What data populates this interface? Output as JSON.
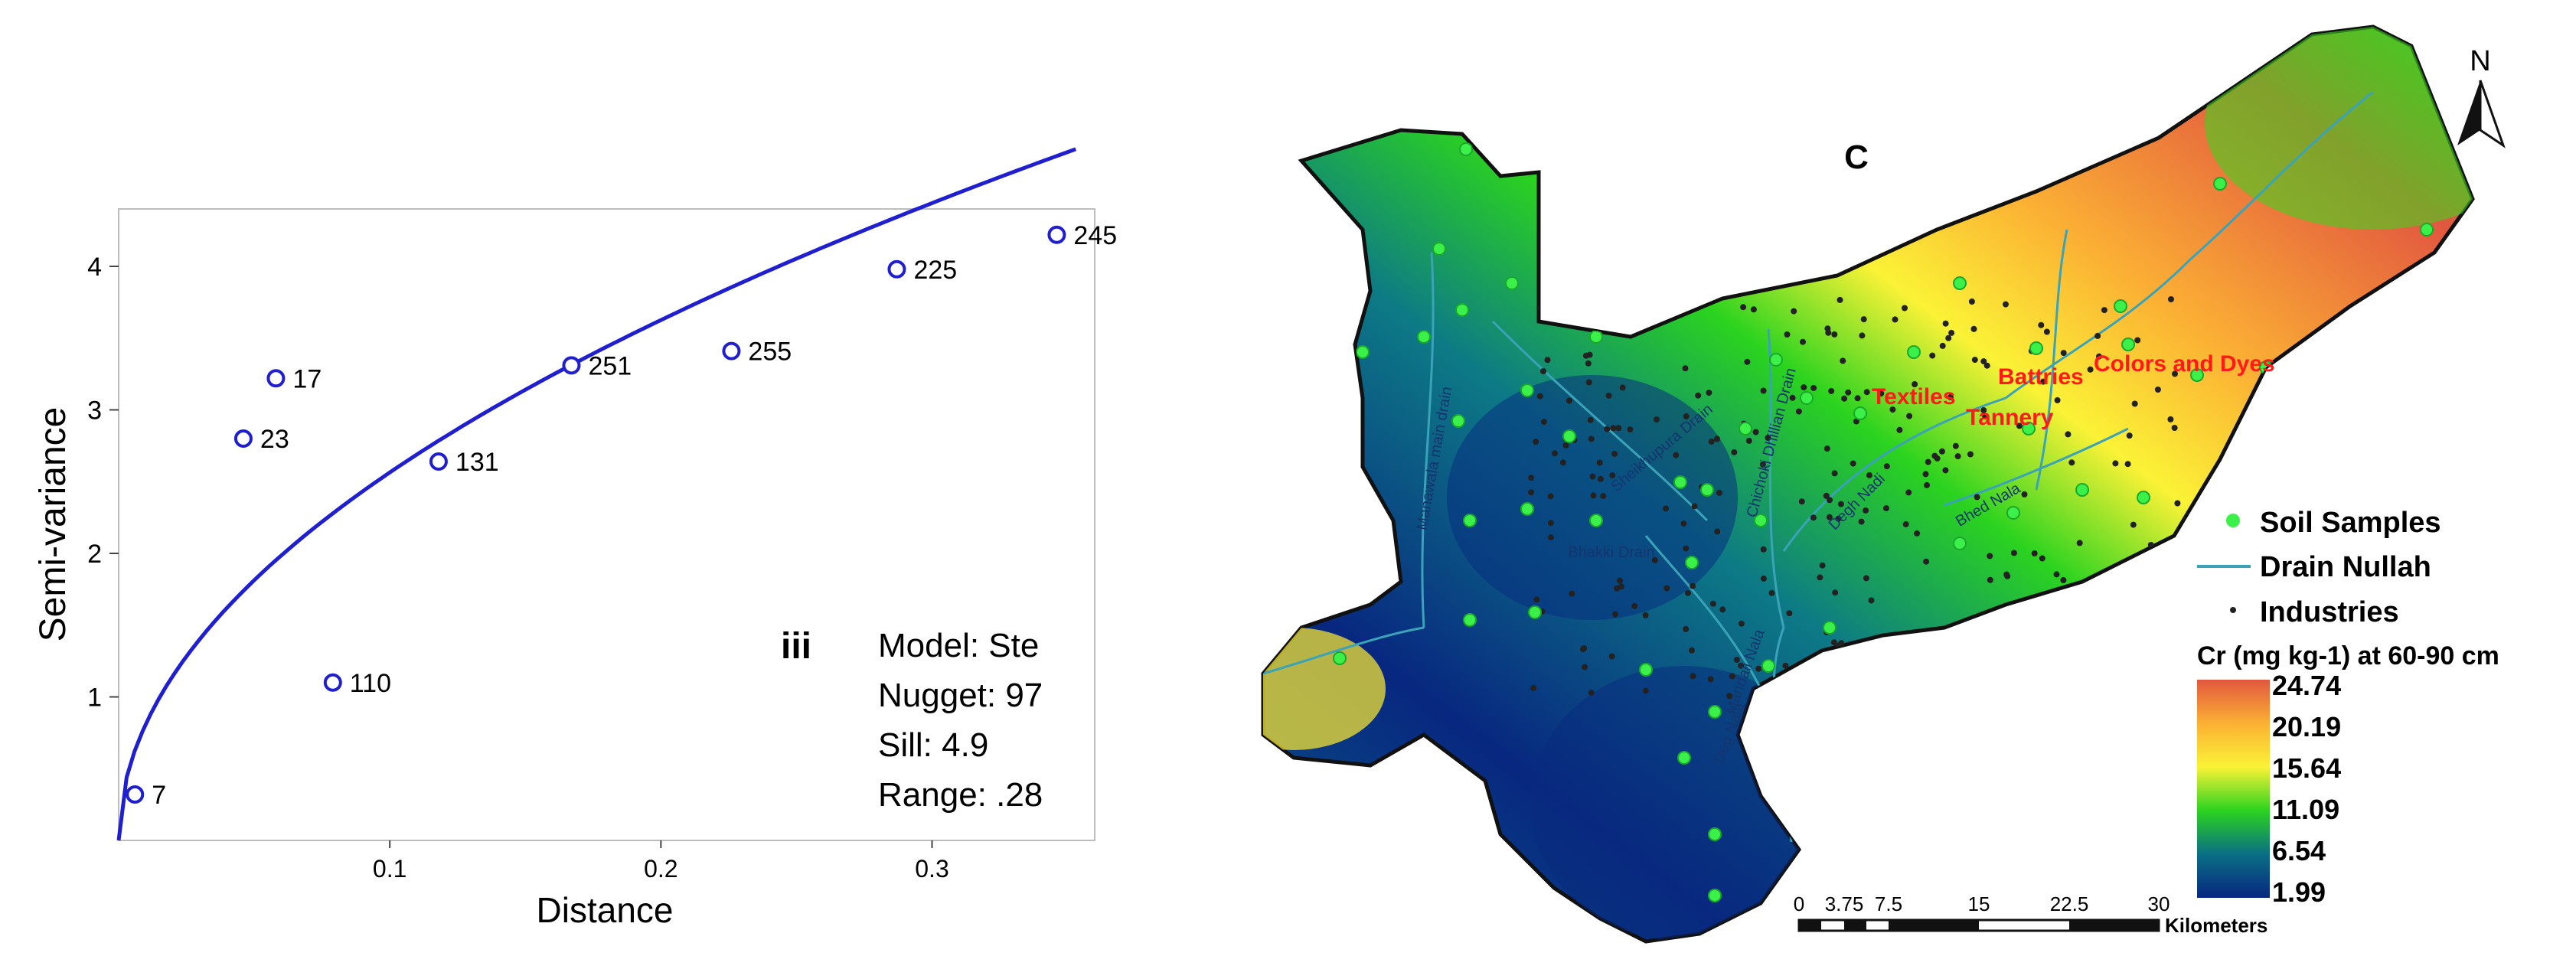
{
  "variogram": {
    "ylabel": "Semi-variance",
    "xlabel": "Distance",
    "panel_label": "iii",
    "model_lines": [
      "Model: Ste",
      "Nugget: 97",
      "Sill: 4.9",
      "Range: .28"
    ],
    "curve_color": "#1f1fd0"
  },
  "chart_data": {
    "type": "scatter",
    "xlim": [
      0,
      0.36
    ],
    "ylim": [
      0,
      4.4
    ],
    "x_ticks": [
      {
        "value": 0.1,
        "label": "0.1"
      },
      {
        "value": 0.2,
        "label": "0.2"
      },
      {
        "value": 0.3,
        "label": "0.3"
      }
    ],
    "y_ticks": [
      {
        "value": 1,
        "label": "1"
      },
      {
        "value": 2,
        "label": "2"
      },
      {
        "value": 3,
        "label": "3"
      },
      {
        "value": 4,
        "label": "4"
      }
    ],
    "points": [
      {
        "x": 0.006,
        "y": 0.32,
        "label": "7"
      },
      {
        "x": 0.058,
        "y": 3.22,
        "label": "17"
      },
      {
        "x": 0.046,
        "y": 2.8,
        "label": "23"
      },
      {
        "x": 0.079,
        "y": 1.1,
        "label": "110"
      },
      {
        "x": 0.118,
        "y": 2.64,
        "label": "131"
      },
      {
        "x": 0.167,
        "y": 3.31,
        "label": "251"
      },
      {
        "x": 0.226,
        "y": 3.41,
        "label": "255"
      },
      {
        "x": 0.287,
        "y": 3.98,
        "label": "225"
      },
      {
        "x": 0.346,
        "y": 4.22,
        "label": "245"
      }
    ],
    "fit_curve": {
      "sill": 4.9,
      "range": 0.28
    }
  },
  "map": {
    "panel_label": "C",
    "north_label": "N",
    "place_labels": [
      "Textiles",
      "Battries",
      "Tannery",
      "Colors and Dyes"
    ],
    "drain_labels": [
      "Manawala main drain",
      "Sheikhupura Drain",
      "Chichoki Dhillian Drain",
      "Degh Nadi",
      "Bhakki Drain",
      "Mandali Nala",
      "Deg Nala",
      "Bhed Nala"
    ],
    "legend": {
      "items": [
        {
          "label": "Soil Samples",
          "symbol": "soil-sample"
        },
        {
          "label": "Drain Nullah",
          "symbol": "drain"
        },
        {
          "label": "Industries",
          "symbol": "industry"
        }
      ],
      "color_title": "Cr (mg kg-1) at 60-90 cm",
      "color_stops": [
        "24.74",
        "20.19",
        "15.64",
        "11.09",
        "6.54",
        "1.99"
      ],
      "colors": [
        "#e2573f",
        "#fbb034",
        "#fbf236",
        "#2bd31f",
        "#0a6f84",
        "#082780"
      ]
    },
    "scale_bar": {
      "ticks": [
        "0",
        "3.75",
        "7.5",
        "15",
        "22.5",
        "30"
      ],
      "unit": "Kilometers"
    },
    "label_color": "#ff1a1a",
    "drain_color": "#3aa3b8",
    "sample_color": "#3cf04a",
    "industry_color": "#222222"
  }
}
